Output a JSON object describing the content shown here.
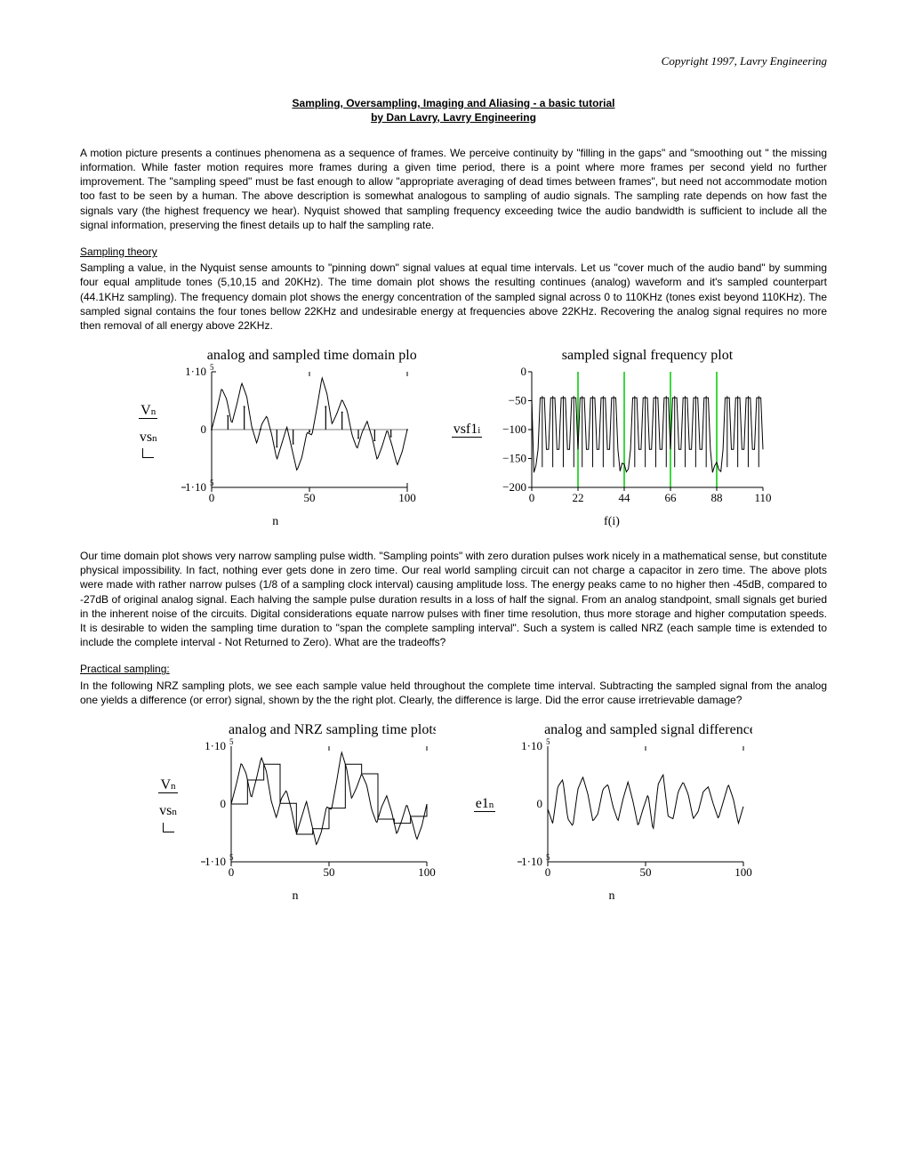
{
  "copyright": "Copyright 1997, Lavry Engineering",
  "title_line1": "Sampling, Oversampling, Imaging and Aliasing - a basic tutorial",
  "title_line2": "by Dan Lavry, Lavry Engineering",
  "para1": "A motion picture presents a continues phenomena as a sequence of frames. We perceive continuity by \"filling in the gaps\" and \"smoothing out \" the missing information. While faster motion requires more frames during a given time period, there is a point where more frames per second yield no further improvement. The \"sampling speed\" must be fast enough to allow \"appropriate averaging of dead times between frames\", but need not accommodate motion too fast to be seen by a human. The above description is somewhat analogous to sampling of audio signals. The sampling rate depends on how fast the signals vary (the highest frequency we hear). Nyquist showed that sampling frequency exceeding twice the audio bandwidth is sufficient to include all the signal information, preserving the finest details up to half the sampling rate.",
  "sec1_head": "Sampling theory",
  "sec1_body": "Sampling a value, in the Nyquist sense amounts to \"pinning down\" signal values at equal time intervals. Let us \"cover much of the audio band\" by summing four equal amplitude tones (5,10,15 and 20KHz). The time domain plot shows the resulting continues (analog) waveform and it's sampled counterpart (44.1KHz sampling). The frequency domain plot shows the energy concentration of the sampled signal across 0 to 110KHz (tones exist beyond 110KHz). The sampled signal contains the four tones bellow 22KHz and undesirable energy at frequencies above 22KHz. Recovering the analog signal requires no more then removal of all energy above 22KHz.",
  "para2": "Our time domain plot shows very narrow sampling pulse width. \"Sampling points\" with zero duration pulses work nicely in a mathematical sense, but constitute physical impossibility. In fact, nothing ever gets done in zero time. Our real world sampling circuit can not charge a capacitor in zero time. The above plots were made with rather narrow pulses (1/8 of a sampling clock interval) causing amplitude loss. The energy peaks came to no higher then -45dB, compared to -27dB of original analog signal. Each halving the sample pulse duration results in a loss of half the signal. From an analog standpoint, small signals get buried in the inherent noise of the circuits. Digital considerations equate narrow pulses with finer time resolution, thus more storage and higher computation speeds. It is desirable to widen the sampling time duration to \"span the complete sampling interval\". Such a system is called NRZ (each sample time is extended to include the complete interval - Not Returned to Zero). What are the tradeoffs?",
  "sec2_head": "Practical sampling:",
  "sec2_body": "In the following NRZ sampling plots, we see each sample value held throughout the complete time interval. Subtracting the sampled signal from the analog one yields a difference (or error) signal, shown by the the right plot. Clearly, the difference is large. Did the error cause irretrievable damage?",
  "chart1": {
    "title": "analog and sampled time domain plot",
    "xlabel": "n",
    "ylabel_top": "V",
    "ylabel_top_sub": "n",
    "ylabel_bot": "vs",
    "ylabel_bot_sub": "n",
    "ymax_label": "1·10",
    "ymax_exp": "5",
    "ymin_label": "1·10",
    "ymin_exp": "5",
    "xticks": [
      "0",
      "50",
      "100"
    ],
    "yticks": [
      "1·10⁵",
      "0",
      "−1·10⁵"
    ]
  },
  "chart2": {
    "title": "sampled signal frequency plot",
    "xlabel": "f(i)",
    "ylabel": "vsf1",
    "ylabel_sub": "i",
    "xticks": [
      "0",
      "22",
      "44",
      "66",
      "88",
      "110"
    ],
    "yticks": [
      "0",
      "−50",
      "−100",
      "−150",
      "−200"
    ],
    "grid_color": "#00c800"
  },
  "chart3": {
    "title": "analog and NRZ sampling time plots",
    "xlabel": "n",
    "ylabel_top": "V",
    "ylabel_top_sub": "n",
    "ylabel_bot": "vs",
    "ylabel_bot_sub": "n",
    "xticks": [
      "0",
      "50",
      "100"
    ]
  },
  "chart4": {
    "title": "analog and sampled signal difference",
    "xlabel": "n",
    "ylabel": "e1",
    "ylabel_sub": "n",
    "xticks": [
      "0",
      "50",
      "100"
    ]
  },
  "analog_wave": [
    0,
    0.35,
    0.75,
    0.55,
    0.1,
    0.45,
    0.85,
    0.6,
    0.05,
    -0.25,
    0.1,
    0.25,
    -0.1,
    -0.55,
    -0.25,
    0.05,
    -0.35,
    -0.75,
    -0.5,
    -0.05,
    -0.1,
    0.4,
    0.95,
    0.65,
    0.1,
    0.3,
    0.55,
    0.35,
    -0.1,
    -0.35,
    -0.05,
    0.15,
    -0.15,
    -0.55,
    -0.3,
    0,
    -0.3,
    -0.65,
    -0.4,
    0
  ],
  "nrz_wave": [
    0,
    0.35,
    0.75,
    0.55,
    0.1,
    0.45,
    0.85,
    0.6,
    0.05,
    -0.25,
    0.1,
    0.25,
    -0.1,
    -0.55,
    -0.25,
    0.05,
    -0.35,
    -0.75,
    -0.5,
    -0.05,
    -0.1,
    0.4,
    0.95,
    0.65,
    0.1,
    0.3,
    0.55,
    0.35,
    -0.1,
    -0.35,
    -0.05,
    0.15,
    -0.15,
    -0.55,
    -0.3,
    0,
    -0.3,
    -0.65,
    -0.4,
    0
  ],
  "err_wave": [
    -0.1,
    -0.4,
    0.35,
    0.5,
    -0.3,
    -0.45,
    0.3,
    0.55,
    0.2,
    -0.35,
    -0.2,
    0.3,
    0.4,
    -0.05,
    -0.35,
    0.1,
    0.45,
    0.05,
    -0.45,
    -0.1,
    0.2,
    -0.55,
    0.4,
    0.6,
    -0.25,
    -0.3,
    0.25,
    0.45,
    0.2,
    -0.3,
    -0.15,
    0.25,
    0.35,
    0,
    -0.3,
    0.05,
    0.4,
    0.1,
    -0.4,
    -0.05
  ],
  "freq_peaks": [
    5,
    10,
    15,
    20,
    24,
    29,
    34,
    39,
    49,
    54,
    59,
    64,
    68,
    73,
    78,
    83,
    93,
    98,
    103,
    108
  ]
}
